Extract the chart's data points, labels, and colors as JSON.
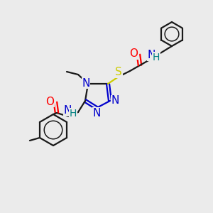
{
  "background_color": "#ebebeb",
  "atom_colors": {
    "N": "#0000cc",
    "O": "#ff0000",
    "S": "#cccc00",
    "H": "#008080",
    "C": "#1a1a1a"
  },
  "bond_lw": 1.6,
  "font_size": 10
}
